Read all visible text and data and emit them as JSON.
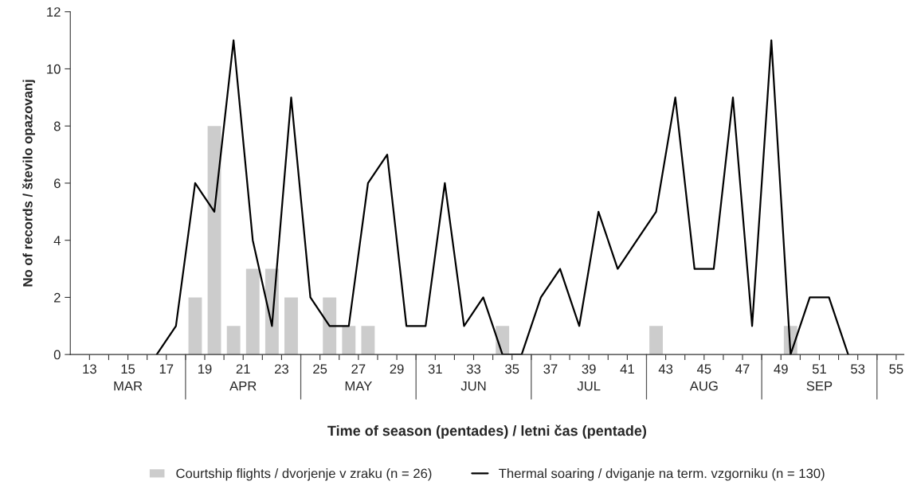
{
  "chart_data": {
    "type": "bar",
    "xlabel": "Time of season (pentades) / letni čas (pentade)",
    "ylabel": "No of records / število opazovanj",
    "series": [
      {
        "name": "Courtship flights / dvorjenje v zraku (n = 26)",
        "color": "#cccccc",
        "x": [
          18.5,
          19.5,
          20.5,
          21.5,
          22.5,
          23.5,
          25.5,
          26.5,
          27.5,
          34.5,
          42.5,
          49.5
        ],
        "values": [
          2,
          8,
          1,
          3,
          3,
          2,
          2,
          1,
          1,
          1,
          1,
          1
        ]
      },
      {
        "type": "line",
        "name": "Thermal soaring / dviganje na term. vzgorniku (n = 130)",
        "color": "#000000",
        "x": [
          16.5,
          17.5,
          18.5,
          19.5,
          20.5,
          21.5,
          22.5,
          23.5,
          24.5,
          25.5,
          26.5,
          27.5,
          28.5,
          29.5,
          30.5,
          31.5,
          32.5,
          33.5,
          34.5,
          35.5,
          36.5,
          37.5,
          38.5,
          39.5,
          40.5,
          41.5,
          42.5,
          43.5,
          44.5,
          45.5,
          46.5,
          47.5,
          48.5,
          49.5,
          50.5,
          51.5,
          52.5
        ],
        "values": [
          0,
          1,
          6,
          5,
          11,
          4,
          1,
          9,
          2,
          1,
          1,
          6,
          7,
          1,
          1,
          6,
          1,
          2,
          0,
          0,
          2,
          3,
          1,
          5,
          3,
          4,
          5,
          9,
          3,
          3,
          9,
          1,
          11,
          0,
          2,
          2,
          0
        ]
      }
    ],
    "xlim": [
      12,
      55.4
    ],
    "xticks": [
      13,
      {
        "value": 14,
        "label": null
      },
      15,
      {
        "value": 16,
        "label": null
      },
      17,
      {
        "value": 18,
        "label": null
      },
      19,
      {
        "value": 20,
        "label": null
      },
      21,
      {
        "value": 22,
        "label": null
      },
      23,
      {
        "value": 24,
        "label": null
      },
      25,
      {
        "value": 26,
        "label": null
      },
      27,
      {
        "value": 28,
        "label": null
      },
      29,
      {
        "value": 30,
        "label": null
      },
      31,
      {
        "value": 32,
        "label": null
      },
      33,
      {
        "value": 34,
        "label": null
      },
      35,
      {
        "value": 36,
        "label": null
      },
      37,
      {
        "value": 38,
        "label": null
      },
      39,
      {
        "value": 40,
        "label": null
      },
      41,
      {
        "value": 42,
        "label": null
      },
      43,
      {
        "value": 44,
        "label": null
      },
      45,
      {
        "value": 46,
        "label": null
      },
      47,
      {
        "value": 48,
        "label": null
      },
      49,
      {
        "value": 50,
        "label": null
      },
      51,
      {
        "value": 52,
        "label": null
      },
      53,
      {
        "value": 54,
        "label": null
      },
      55
    ],
    "annotations": [
      "MAR",
      "APR",
      "MAY",
      "JUN",
      "JUL",
      "AUG",
      "SEP"
    ],
    "ylim": [
      0,
      12
    ],
    "yticks": [
      0,
      2,
      4,
      6,
      8,
      10,
      12
    ],
    "grid": false,
    "legend": "bottom"
  }
}
